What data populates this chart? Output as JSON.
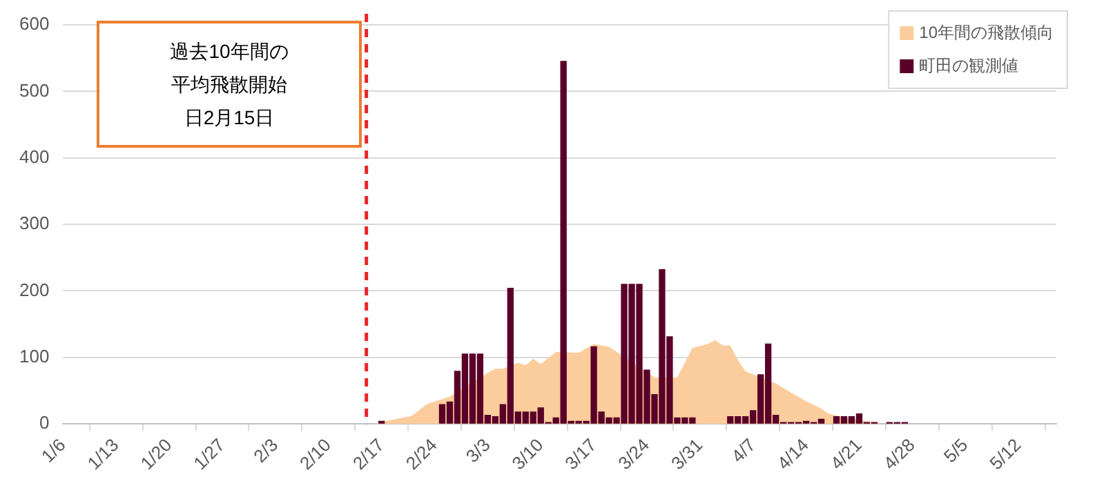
{
  "chart_data": {
    "type": "bar",
    "xlim": [
      "--01-06",
      "--05-17"
    ],
    "xticks": [
      {
        "value": "--01-06",
        "label": "1/6"
      },
      {
        "value": "--01-13",
        "label": "1/13"
      },
      {
        "value": "--01-20",
        "label": "1/20"
      },
      {
        "value": "--01-27",
        "label": "1/27"
      },
      {
        "value": "--02-03",
        "label": "2/3"
      },
      {
        "value": "--02-10",
        "label": "2/10"
      },
      {
        "value": "--02-17",
        "label": "2/17"
      },
      {
        "value": "--02-24",
        "label": "2/24"
      },
      {
        "value": "--03-03",
        "label": "3/3"
      },
      {
        "value": "--03-10",
        "label": "3/10"
      },
      {
        "value": "--03-17",
        "label": "3/17"
      },
      {
        "value": "--03-24",
        "label": "3/24"
      },
      {
        "value": "--03-31",
        "label": "3/31"
      },
      {
        "value": "--04-07",
        "label": "4/7"
      },
      {
        "value": "--04-14",
        "label": "4/14"
      },
      {
        "value": "--04-21",
        "label": "4/21"
      },
      {
        "value": "--04-28",
        "label": "4/28"
      },
      {
        "value": "--05-05",
        "label": "5/5"
      },
      {
        "value": "--05-12",
        "label": "5/12"
      }
    ],
    "ylim": [
      0,
      600
    ],
    "yticks": [
      0,
      100,
      200,
      300,
      400,
      500,
      600
    ],
    "grid": "y",
    "legend": "top right",
    "series": [
      {
        "name": "10年間の飛散傾向",
        "type": "area",
        "color": "#fbcd9d",
        "x": [
          "--02-16",
          "--02-17",
          "--02-21",
          "--02-23",
          "--02-26",
          "--02-28",
          "--03-02",
          "--03-03",
          "--03-04",
          "--03-05",
          "--03-07",
          "--03-08",
          "--03-09",
          "--03-10",
          "--03-11",
          "--03-12",
          "--03-13",
          "--03-15",
          "--03-17",
          "--03-18",
          "--03-19",
          "--03-21",
          "--03-23",
          "--03-25",
          "--03-26",
          "--03-27",
          "--03-28",
          "--03-30",
          "--04-01",
          "--04-02",
          "--04-03",
          "--04-04",
          "--04-05",
          "--04-06",
          "--04-08",
          "--04-10",
          "--04-12",
          "--04-14",
          "--04-16",
          "--04-17",
          "--04-20",
          "--04-22",
          "--04-24"
        ],
        "values": [
          0,
          3,
          12,
          30,
          41,
          null,
          null,
          77,
          83,
          83,
          92,
          88,
          98,
          90,
          99,
          108,
          null,
          107,
          120,
          118,
          116,
          null,
          null,
          70,
          null,
          null,
          70,
          114,
          120,
          126,
          118,
          118,
          96,
          79,
          null,
          61,
          47,
          34,
          23,
          15,
          8,
          4,
          0
        ]
      },
      {
        "name": "町田の観測値",
        "color": "#5a0028",
        "x": [
          "--02-17",
          "--02-25",
          "--02-26",
          "--02-27",
          "--02-28",
          "--03-01",
          "--03-02",
          "--03-03",
          "--03-04",
          "--03-05",
          "--03-06",
          "--03-07",
          "--03-08",
          "--03-09",
          "--03-10",
          "--03-11",
          "--03-12",
          "--03-13",
          "--03-14",
          "--03-15",
          "--03-16",
          "--03-17",
          "--03-18",
          "--03-19",
          "--03-20",
          "--03-21",
          "--03-22",
          "--03-23",
          "--03-24",
          "--03-25",
          "--03-26",
          "--03-27",
          "--03-28",
          "--03-29",
          "--03-30",
          "--04-04",
          "--04-05",
          "--04-06",
          "--04-07",
          "--04-08",
          "--04-09",
          "--04-10",
          "--04-11",
          "--04-12",
          "--04-13",
          "--04-14",
          "--04-15",
          "--04-16",
          "--04-18",
          "--04-19",
          "--04-20",
          "--04-21",
          "--04-22",
          "--04-23",
          "--04-25",
          "--04-26",
          "--04-27"
        ],
        "values": [
          4,
          29,
          33,
          79,
          105,
          105,
          105,
          13,
          11,
          29,
          204,
          18,
          18,
          18,
          24,
          2,
          9,
          545,
          4,
          4,
          4,
          116,
          18,
          9,
          9,
          210,
          210,
          210,
          81,
          44,
          232,
          131,
          9,
          9,
          9,
          11,
          11,
          11,
          20,
          74,
          120,
          13,
          2,
          2,
          2,
          4,
          2,
          7,
          11,
          11,
          11,
          15,
          2,
          2,
          2,
          2,
          2
        ]
      }
    ],
    "ref_lines": [
      {
        "axis": "x",
        "value": "--02-15",
        "color": "#e8262a",
        "line_style": "dashed"
      }
    ],
    "annotations": [
      "過去10年間の平均飛散開始日2月15日"
    ]
  }
}
